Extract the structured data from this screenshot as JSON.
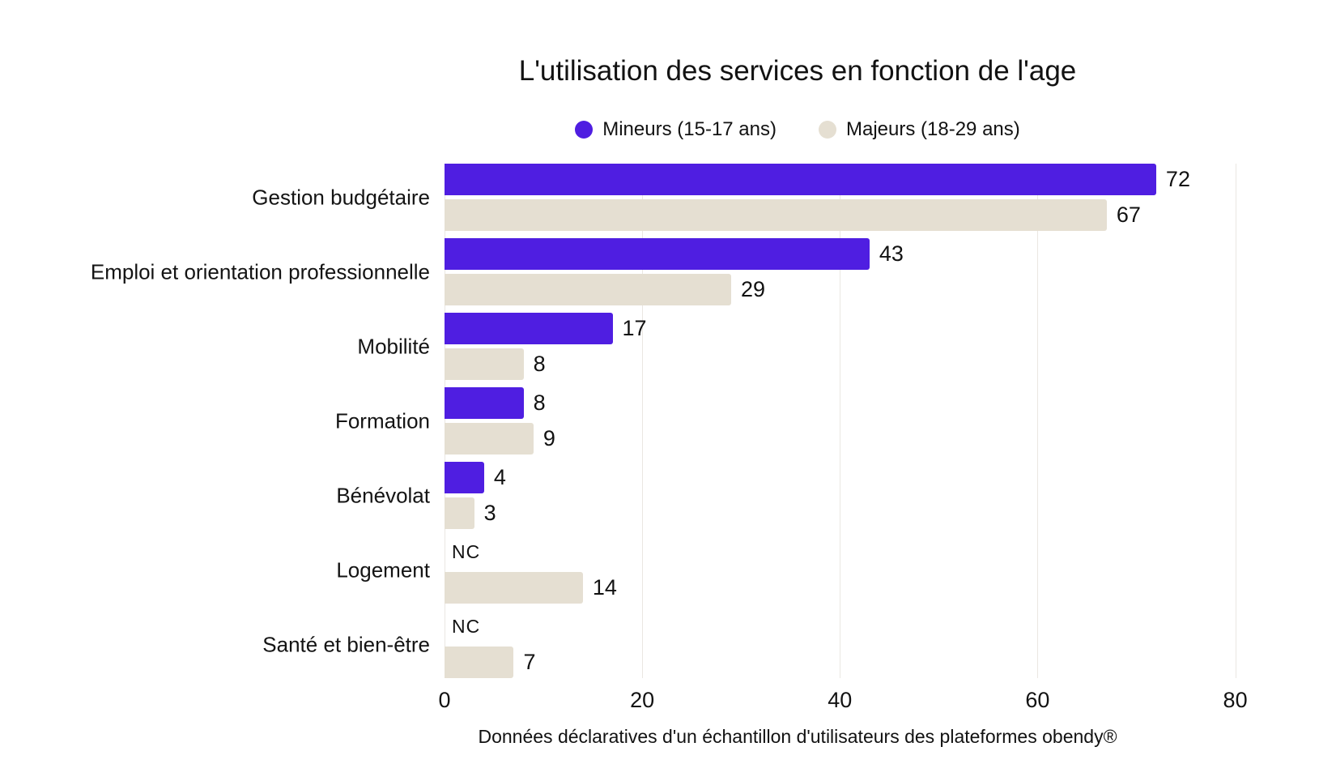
{
  "chart_data": {
    "type": "bar",
    "orientation": "horizontal",
    "title": "L'utilisation des services en fonction de l'age",
    "source_note": "Données déclaratives d'un échantillon d'utilisateurs des plateformes obendy®",
    "categories": [
      "Gestion budgétaire",
      "Emploi et orientation professionnelle",
      "Mobilité",
      "Formation",
      "Bénévolat",
      "Logement",
      "Santé et bien-être"
    ],
    "series": [
      {
        "name": "Mineurs (15-17 ans)",
        "color": "#4F1EE1",
        "values": [
          72,
          43,
          17,
          8,
          4,
          null,
          null
        ],
        "value_labels": [
          "72",
          "43",
          "17",
          "8",
          "4",
          "NC",
          "NC"
        ]
      },
      {
        "name": "Majeurs (18-29 ans)",
        "color": "#E5DFD2",
        "values": [
          67,
          29,
          8,
          9,
          3,
          14,
          7
        ],
        "value_labels": [
          "67",
          "29",
          "8",
          "9",
          "3",
          "14",
          "7"
        ]
      }
    ],
    "xticks": [
      0,
      20,
      40,
      60,
      80
    ],
    "xlim": [
      0,
      82
    ],
    "grid": "vertical-light",
    "legend_position": "top-center",
    "missing_value_label": "NC"
  },
  "colors": {
    "background": "#FFFFFF",
    "text": "#121212",
    "gridline": "#EAE7E2",
    "mineurs": "#4F1EE1",
    "majeurs": "#E5DFD2"
  }
}
